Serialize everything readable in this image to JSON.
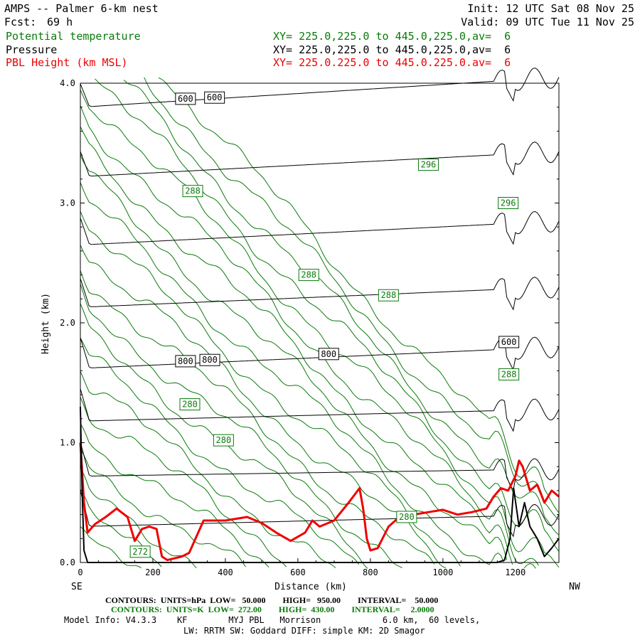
{
  "header": {
    "title_left": "AMPS -- Palmer 6-km nest",
    "fcst_label": "Fcst:",
    "fcst_value": "69 h",
    "init": "Init: 12 UTC Sat 08 Nov 25",
    "valid": "Valid: 09 UTC Tue 11 Nov 25",
    "fields": [
      {
        "name": "Potential temperature",
        "xy": "XY= 225.0,225.0 to 445.0,225.0,av=  6",
        "color": "#0a7a0a"
      },
      {
        "name": "Pressure",
        "xy": "XY= 225.0,225.0 to 445.0,225.0,av=  6",
        "color": "#000000"
      },
      {
        "name": "PBL Height (km MSL)",
        "xy": "XY= 225.0.225.0 to 445.0.225.0.av=  6",
        "color": "#ee0000"
      }
    ]
  },
  "chart_data": {
    "type": "line",
    "xlabel": "Distance (km)",
    "ylabel": "Height (km)",
    "xlim": [
      0,
      1320
    ],
    "ylim": [
      0,
      4.0
    ],
    "x_ticks": [
      0,
      200,
      400,
      600,
      800,
      1000,
      1200
    ],
    "y_ticks": [
      "0.0",
      "1.0",
      "2.0",
      "3.0",
      "4.0"
    ],
    "x_end_labels": {
      "left": "SE",
      "right": "NW"
    },
    "pressure_contours": {
      "units": "hPa",
      "color": "#000000",
      "levels_start_end_km": [
        [
          0.3,
          0.4
        ],
        [
          0.72,
          0.78
        ],
        [
          1.18,
          1.28
        ],
        [
          1.62,
          1.8
        ],
        [
          2.13,
          2.3
        ],
        [
          2.65,
          2.85
        ],
        [
          3.22,
          3.43
        ],
        [
          3.8,
          4.05
        ]
      ],
      "labels": [
        {
          "text": "600",
          "x": 290,
          "y": 3.87
        },
        {
          "text": "600",
          "x": 370,
          "y": 3.88
        },
        {
          "text": "600",
          "x": 1182,
          "y": 1.84
        },
        {
          "text": "800",
          "x": 290,
          "y": 1.68
        },
        {
          "text": "800",
          "x": 357,
          "y": 1.69
        },
        {
          "text": "800",
          "x": 685,
          "y": 1.74
        }
      ]
    },
    "theta_contours": {
      "units": "K",
      "color": "#0a7a0a",
      "labels": [
        {
          "text": "296",
          "x": 960,
          "y": 3.32
        },
        {
          "text": "296",
          "x": 1180,
          "y": 3.0
        },
        {
          "text": "288",
          "x": 310,
          "y": 3.1
        },
        {
          "text": "288",
          "x": 630,
          "y": 2.4
        },
        {
          "text": "288",
          "x": 850,
          "y": 2.23
        },
        {
          "text": "288",
          "x": 1182,
          "y": 1.57
        },
        {
          "text": "280",
          "x": 302,
          "y": 1.32
        },
        {
          "text": "280",
          "x": 395,
          "y": 1.02
        },
        {
          "text": "280",
          "x": 900,
          "y": 0.38
        },
        {
          "text": "272",
          "x": 165,
          "y": 0.09
        }
      ]
    },
    "series": [
      {
        "name": "PBL Height (km MSL)",
        "color": "#ee0000",
        "x": [
          0,
          10,
          20,
          40,
          70,
          100,
          130,
          150,
          170,
          190,
          210,
          225,
          240,
          280,
          300,
          340,
          400,
          460,
          500,
          540,
          580,
          620,
          640,
          660,
          700,
          740,
          770,
          780,
          790,
          800,
          820,
          850,
          880,
          920,
          960,
          1000,
          1040,
          1080,
          1120,
          1140,
          1160,
          1180,
          1200,
          1210,
          1220,
          1240,
          1260,
          1280,
          1300,
          1320
        ],
        "y": [
          1.0,
          0.5,
          0.25,
          0.32,
          0.38,
          0.45,
          0.38,
          0.18,
          0.28,
          0.3,
          0.28,
          0.05,
          0.02,
          0.05,
          0.08,
          0.35,
          0.35,
          0.38,
          0.33,
          0.25,
          0.18,
          0.25,
          0.35,
          0.3,
          0.35,
          0.5,
          0.62,
          0.45,
          0.2,
          0.1,
          0.12,
          0.3,
          0.38,
          0.4,
          0.42,
          0.44,
          0.4,
          0.42,
          0.45,
          0.55,
          0.62,
          0.6,
          0.72,
          0.85,
          0.8,
          0.6,
          0.65,
          0.5,
          0.6,
          0.55
        ]
      },
      {
        "name": "Terrain",
        "color": "#000000",
        "x": [
          0,
          5,
          10,
          20,
          100,
          1100,
          1150,
          1170,
          1185,
          1195,
          1210,
          1225,
          1240,
          1260,
          1280,
          1300,
          1320
        ],
        "y": [
          1.3,
          0.6,
          0.1,
          0.0,
          0.0,
          0.0,
          0.0,
          0.02,
          0.2,
          0.62,
          0.3,
          0.5,
          0.3,
          0.2,
          0.05,
          0.12,
          0.2
        ]
      }
    ]
  },
  "footer": {
    "line1": "CONTOURS:  UNITS=hPa  LOW=   50.000        HIGH=   950.00        INTERVAL=    50.000",
    "line2": "CONTOURS:  UNITS=K  LOW=  272.00        HIGH=  430.00        INTERVAL=     2.0000",
    "line3": "Model Info: V4.3.3    KF        MYJ PBL   Morrison            6.0 km,  60 levels,",
    "line4": "LW: RRTM SW: Goddard DIFF: simple KM: 2D Smagor"
  }
}
